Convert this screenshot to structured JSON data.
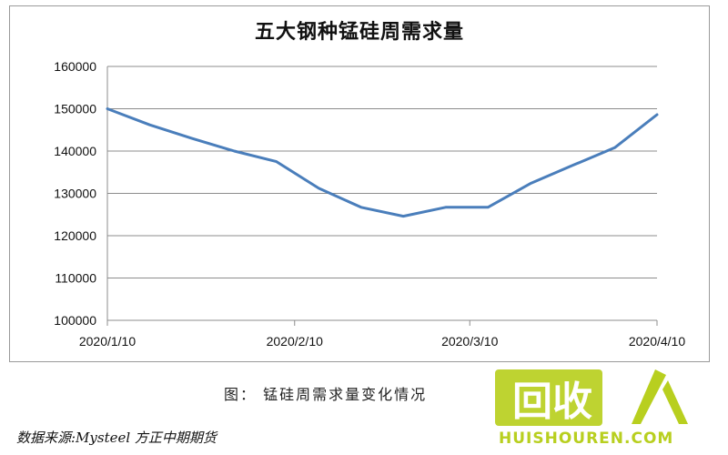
{
  "chart_data": {
    "type": "line",
    "title": "五大钢种锰硅周需求量",
    "xlabel": "",
    "ylabel": "",
    "x_tick_labels": [
      "2020/1/10",
      "2020/2/10",
      "2020/3/10",
      "2020/4/10"
    ],
    "ylim": [
      100000,
      160000
    ],
    "y_ticks": [
      100000,
      110000,
      120000,
      130000,
      140000,
      150000,
      160000
    ],
    "grid": true,
    "legend": "none",
    "series": [
      {
        "color": "#4a7ebb",
        "x": [
          "2020/1/10",
          "2020/1/17",
          "2020/1/24",
          "2020/1/31",
          "2020/2/7",
          "2020/2/14",
          "2020/2/21",
          "2020/2/28",
          "2020/3/6",
          "2020/3/13",
          "2020/3/20",
          "2020/3/27",
          "2020/4/3",
          "2020/4/10"
        ],
        "values": [
          150000,
          146200,
          143000,
          140000,
          137500,
          131200,
          126700,
          124600,
          126700,
          126700,
          132300,
          136600,
          140800,
          148600
        ]
      }
    ]
  },
  "caption": "图： 锰硅周需求量变化情况",
  "source": "数据来源:Mysteel   方正中期期货",
  "watermark": {
    "logo_text": "回收",
    "sub_text": "HUISHOUREN.COM",
    "color": "#b8cf1f",
    "icon": "person-icon"
  }
}
